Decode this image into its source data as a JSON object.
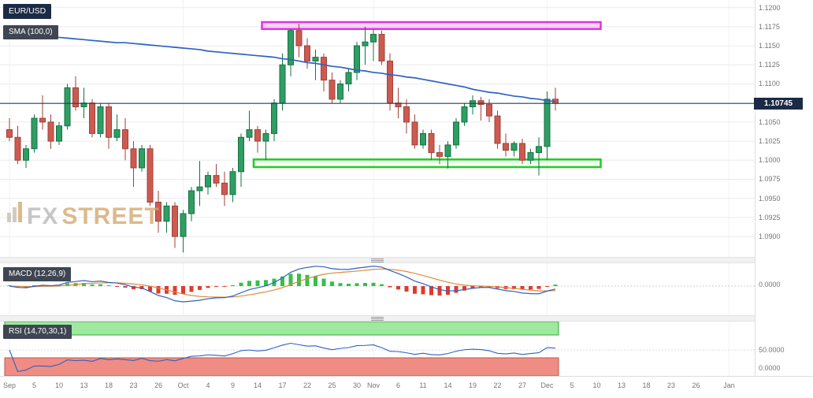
{
  "header": {
    "symbol_badge": "EUR/USD",
    "sma_badge": "SMA (100,0)"
  },
  "panels": {
    "macd": {
      "label": "MACD (12,26,9)",
      "zero_label": "0.0000"
    },
    "rsi": {
      "label": "RSI (14,70,30,1)",
      "mid_label": "50.0000",
      "low_label": "0.0000"
    }
  },
  "watermark": {
    "fx": "FX",
    "street": "STREET"
  },
  "colors": {
    "bull": "#2e9e63",
    "bull_border": "#157142",
    "bear": "#cd5a50",
    "bear_border": "#9e423a",
    "sma": "#2d62c2",
    "price_line": "#223a5e",
    "resistance": "#e62ee6",
    "support": "#22cc22",
    "macd_line": "#2d62c2",
    "macd_signal": "#e08a3c",
    "hist_up": "#35c04a",
    "hist_down": "#e03a2e",
    "rsi_line": "#2d62c2",
    "rsi_ob_fill": "#9fe89f",
    "rsi_ob_border": "#33aa33",
    "rsi_os_fill": "#ef8d85",
    "rsi_os_border": "#c4554b",
    "badge_dark": "#1b2b45",
    "badge_gray": "#3f4652"
  },
  "chart_data": {
    "type": "candlestick",
    "symbol": "EUR/USD",
    "timeframe": "daily",
    "current_price": 1.10745,
    "current_price_label": "1.10745",
    "price_axis": [
      {
        "t": "1.1200",
        "v": 1.12
      },
      {
        "t": "1.1175",
        "v": 1.1175
      },
      {
        "t": "1.1150",
        "v": 1.115
      },
      {
        "t": "1.1125",
        "v": 1.1125
      },
      {
        "t": "1.1100",
        "v": 1.11
      },
      {
        "t": "1.1050",
        "v": 1.105
      },
      {
        "t": "1.1025",
        "v": 1.1025
      },
      {
        "t": "1.1000",
        "v": 1.1
      },
      {
        "t": "1.0975",
        "v": 1.0975
      },
      {
        "t": "1.0950",
        "v": 1.095
      },
      {
        "t": "1.0925",
        "v": 1.0925
      },
      {
        "t": "1.0900",
        "v": 1.09
      }
    ],
    "x_ticks": [
      {
        "t": "Sep",
        "i": 0,
        "month": true
      },
      {
        "t": "5",
        "i": 3
      },
      {
        "t": "10",
        "i": 6
      },
      {
        "t": "13",
        "i": 9
      },
      {
        "t": "18",
        "i": 12
      },
      {
        "t": "23",
        "i": 15
      },
      {
        "t": "26",
        "i": 18
      },
      {
        "t": "Oct",
        "i": 21,
        "month": true
      },
      {
        "t": "4",
        "i": 24
      },
      {
        "t": "9",
        "i": 27
      },
      {
        "t": "14",
        "i": 30
      },
      {
        "t": "17",
        "i": 33
      },
      {
        "t": "22",
        "i": 36
      },
      {
        "t": "25",
        "i": 39
      },
      {
        "t": "30",
        "i": 42
      },
      {
        "t": "Nov",
        "i": 44,
        "month": true
      },
      {
        "t": "6",
        "i": 47
      },
      {
        "t": "11",
        "i": 50
      },
      {
        "t": "14",
        "i": 53
      },
      {
        "t": "19",
        "i": 56
      },
      {
        "t": "22",
        "i": 59
      },
      {
        "t": "27",
        "i": 62
      },
      {
        "t": "Dec",
        "i": 65,
        "month": true
      },
      {
        "t": "5",
        "i": 68
      },
      {
        "t": "10",
        "i": 71
      },
      {
        "t": "13",
        "i": 74
      },
      {
        "t": "18",
        "i": 77
      },
      {
        "t": "23",
        "i": 80
      },
      {
        "t": "26",
        "i": 83
      },
      {
        "t": "Jan",
        "i": 87,
        "month": true
      }
    ],
    "resistance_zone": {
      "from_i": 31,
      "to_i": 71,
      "top": 1.1181,
      "bottom": 1.1172
    },
    "support_zone": {
      "from_i": 30,
      "to_i": 71,
      "top": 1.1001,
      "bottom": 1.0991
    },
    "indicators": {
      "sma": {
        "period": 100,
        "shift": 0
      },
      "macd": {
        "fast": 12,
        "slow": 26,
        "signal": 9
      },
      "rsi": {
        "period": 14,
        "overbought": 70,
        "oversold": 30,
        "smoothing": 1
      }
    },
    "candles": [
      {
        "d": "Sep 2",
        "o": 1.104,
        "h": 1.1055,
        "l": 1.1025,
        "c": 1.103
      },
      {
        "d": "Sep 3",
        "o": 1.103,
        "h": 1.1045,
        "l": 1.0995,
        "c": 1.1
      },
      {
        "d": "Sep 4",
        "o": 1.1,
        "h": 1.102,
        "l": 1.099,
        "c": 1.1015
      },
      {
        "d": "Sep 5",
        "o": 1.1015,
        "h": 1.106,
        "l": 1.101,
        "c": 1.1055
      },
      {
        "d": "Sep 6",
        "o": 1.1055,
        "h": 1.1085,
        "l": 1.104,
        "c": 1.105
      },
      {
        "d": "Sep 9",
        "o": 1.105,
        "h": 1.106,
        "l": 1.1015,
        "c": 1.1025
      },
      {
        "d": "Sep 10",
        "o": 1.1025,
        "h": 1.105,
        "l": 1.102,
        "c": 1.1045
      },
      {
        "d": "Sep 11",
        "o": 1.1045,
        "h": 1.11,
        "l": 1.104,
        "c": 1.1095
      },
      {
        "d": "Sep 12",
        "o": 1.1095,
        "h": 1.111,
        "l": 1.1065,
        "c": 1.107
      },
      {
        "d": "Sep 13",
        "o": 1.107,
        "h": 1.1095,
        "l": 1.1055,
        "c": 1.1075
      },
      {
        "d": "Sep 16",
        "o": 1.1075,
        "h": 1.108,
        "l": 1.103,
        "c": 1.1035
      },
      {
        "d": "Sep 17",
        "o": 1.1035,
        "h": 1.1075,
        "l": 1.103,
        "c": 1.107
      },
      {
        "d": "Sep 18",
        "o": 1.107,
        "h": 1.1075,
        "l": 1.1015,
        "c": 1.103
      },
      {
        "d": "Sep 19",
        "o": 1.103,
        "h": 1.106,
        "l": 1.1025,
        "c": 1.104
      },
      {
        "d": "Sep 20",
        "o": 1.104,
        "h": 1.1055,
        "l": 1.1,
        "c": 1.1015
      },
      {
        "d": "Sep 23",
        "o": 1.1015,
        "h": 1.1025,
        "l": 1.0965,
        "c": 1.099
      },
      {
        "d": "Sep 24",
        "o": 1.099,
        "h": 1.102,
        "l": 1.0985,
        "c": 1.1015
      },
      {
        "d": "Sep 25",
        "o": 1.1015,
        "h": 1.102,
        "l": 1.094,
        "c": 1.0945
      },
      {
        "d": "Sep 26",
        "o": 1.0945,
        "h": 1.096,
        "l": 1.0905,
        "c": 1.092
      },
      {
        "d": "Sep 27",
        "o": 1.092,
        "h": 1.0945,
        "l": 1.0905,
        "c": 1.094
      },
      {
        "d": "Sep 30",
        "o": 1.094,
        "h": 1.0945,
        "l": 1.0885,
        "c": 1.09
      },
      {
        "d": "Oct 1",
        "o": 1.09,
        "h": 1.0935,
        "l": 1.0879,
        "c": 1.093
      },
      {
        "d": "Oct 2",
        "o": 1.093,
        "h": 1.0965,
        "l": 1.092,
        "c": 1.096
      },
      {
        "d": "Oct 3",
        "o": 1.096,
        "h": 1.0999,
        "l": 1.094,
        "c": 1.0965
      },
      {
        "d": "Oct 4",
        "o": 1.0965,
        "h": 1.0985,
        "l": 1.0955,
        "c": 1.098
      },
      {
        "d": "Oct 7",
        "o": 1.098,
        "h": 1.0995,
        "l": 1.0965,
        "c": 1.097
      },
      {
        "d": "Oct 8",
        "o": 1.097,
        "h": 1.0985,
        "l": 1.094,
        "c": 1.0955
      },
      {
        "d": "Oct 9",
        "o": 1.0955,
        "h": 1.099,
        "l": 1.0945,
        "c": 1.0985
      },
      {
        "d": "Oct 10",
        "o": 1.0985,
        "h": 1.1035,
        "l": 1.0965,
        "c": 1.103
      },
      {
        "d": "Oct 11",
        "o": 1.103,
        "h": 1.1065,
        "l": 1.1025,
        "c": 1.104
      },
      {
        "d": "Oct 14",
        "o": 1.104,
        "h": 1.1045,
        "l": 1.101,
        "c": 1.1025
      },
      {
        "d": "Oct 15",
        "o": 1.1025,
        "h": 1.104,
        "l": 1.1,
        "c": 1.1035
      },
      {
        "d": "Oct 16",
        "o": 1.1035,
        "h": 1.108,
        "l": 1.1025,
        "c": 1.1075
      },
      {
        "d": "Oct 17",
        "o": 1.1075,
        "h": 1.114,
        "l": 1.1065,
        "c": 1.1125
      },
      {
        "d": "Oct 18",
        "o": 1.1125,
        "h": 1.1172,
        "l": 1.111,
        "c": 1.117
      },
      {
        "d": "Oct 21",
        "o": 1.117,
        "h": 1.1179,
        "l": 1.1135,
        "c": 1.115
      },
      {
        "d": "Oct 22",
        "o": 1.115,
        "h": 1.116,
        "l": 1.112,
        "c": 1.113
      },
      {
        "d": "Oct 23",
        "o": 1.113,
        "h": 1.1145,
        "l": 1.1105,
        "c": 1.1135
      },
      {
        "d": "Oct 24",
        "o": 1.1135,
        "h": 1.114,
        "l": 1.109,
        "c": 1.1105
      },
      {
        "d": "Oct 25",
        "o": 1.1105,
        "h": 1.1115,
        "l": 1.1075,
        "c": 1.108
      },
      {
        "d": "Oct 28",
        "o": 1.108,
        "h": 1.1105,
        "l": 1.1075,
        "c": 1.11
      },
      {
        "d": "Oct 29",
        "o": 1.11,
        "h": 1.112,
        "l": 1.109,
        "c": 1.1115
      },
      {
        "d": "Oct 30",
        "o": 1.1115,
        "h": 1.1155,
        "l": 1.1105,
        "c": 1.115
      },
      {
        "d": "Oct 31",
        "o": 1.115,
        "h": 1.1175,
        "l": 1.1125,
        "c": 1.1155
      },
      {
        "d": "Nov 1",
        "o": 1.1155,
        "h": 1.1172,
        "l": 1.113,
        "c": 1.1165
      },
      {
        "d": "Nov 4",
        "o": 1.1165,
        "h": 1.117,
        "l": 1.1125,
        "c": 1.113
      },
      {
        "d": "Nov 5",
        "o": 1.113,
        "h": 1.114,
        "l": 1.1065,
        "c": 1.1075
      },
      {
        "d": "Nov 6",
        "o": 1.1075,
        "h": 1.1095,
        "l": 1.1055,
        "c": 1.107
      },
      {
        "d": "Nov 7",
        "o": 1.107,
        "h": 1.108,
        "l": 1.1035,
        "c": 1.105
      },
      {
        "d": "Nov 8",
        "o": 1.105,
        "h": 1.106,
        "l": 1.1015,
        "c": 1.102
      },
      {
        "d": "Nov 11",
        "o": 1.102,
        "h": 1.104,
        "l": 1.1015,
        "c": 1.1035
      },
      {
        "d": "Nov 12",
        "o": 1.1035,
        "h": 1.104,
        "l": 1.1,
        "c": 1.101
      },
      {
        "d": "Nov 13",
        "o": 1.101,
        "h": 1.102,
        "l": 1.0995,
        "c": 1.1005
      },
      {
        "d": "Nov 14",
        "o": 1.1005,
        "h": 1.1025,
        "l": 1.0989,
        "c": 1.102
      },
      {
        "d": "Nov 15",
        "o": 1.102,
        "h": 1.1055,
        "l": 1.1015,
        "c": 1.105
      },
      {
        "d": "Nov 18",
        "o": 1.105,
        "h": 1.1075,
        "l": 1.1045,
        "c": 1.107
      },
      {
        "d": "Nov 19",
        "o": 1.107,
        "h": 1.1085,
        "l": 1.106,
        "c": 1.1078
      },
      {
        "d": "Nov 20",
        "o": 1.1078,
        "h": 1.1083,
        "l": 1.1052,
        "c": 1.1073
      },
      {
        "d": "Nov 21",
        "o": 1.1073,
        "h": 1.108,
        "l": 1.105,
        "c": 1.1058
      },
      {
        "d": "Nov 22",
        "o": 1.1058,
        "h": 1.1065,
        "l": 1.1015,
        "c": 1.1022
      },
      {
        "d": "Nov 25",
        "o": 1.1022,
        "h": 1.1035,
        "l": 1.1005,
        "c": 1.1013
      },
      {
        "d": "Nov 26",
        "o": 1.1013,
        "h": 1.1025,
        "l": 1.1005,
        "c": 1.1022
      },
      {
        "d": "Nov 27",
        "o": 1.1022,
        "h": 1.1028,
        "l": 1.0995,
        "c": 1.1
      },
      {
        "d": "Nov 28",
        "o": 1.1,
        "h": 1.1015,
        "l": 1.0995,
        "c": 1.101
      },
      {
        "d": "Nov 29",
        "o": 1.101,
        "h": 1.103,
        "l": 1.098,
        "c": 1.1018
      },
      {
        "d": "Dec 2",
        "o": 1.1018,
        "h": 1.109,
        "l": 1.1,
        "c": 1.108
      },
      {
        "d": "Dec 3",
        "o": 1.108,
        "h": 1.1095,
        "l": 1.1065,
        "c": 1.10745
      }
    ],
    "sma_100": [
      1.1166,
      1.1165,
      1.1164,
      1.1163,
      1.1162,
      1.1162,
      1.1161,
      1.116,
      1.1159,
      1.1158,
      1.1157,
      1.1156,
      1.1155,
      1.1154,
      1.1154,
      1.1153,
      1.1152,
      1.1151,
      1.115,
      1.1149,
      1.1148,
      1.1147,
      1.1146,
      1.1145,
      1.1143,
      1.1142,
      1.1141,
      1.114,
      1.1139,
      1.1138,
      1.1137,
      1.1136,
      1.1135,
      1.1133,
      1.1132,
      1.113,
      1.1128,
      1.1127,
      1.1125,
      1.1123,
      1.1122,
      1.112,
      1.1118,
      1.1117,
      1.1115,
      1.1114,
      1.1112,
      1.1111,
      1.1109,
      1.1108,
      1.1106,
      1.1104,
      1.1102,
      1.11,
      1.1098,
      1.1096,
      1.1093,
      1.1091,
      1.1089,
      1.1088,
      1.1086,
      1.1084,
      1.1083,
      1.1081,
      1.108,
      1.1078,
      1.1077
    ]
  }
}
